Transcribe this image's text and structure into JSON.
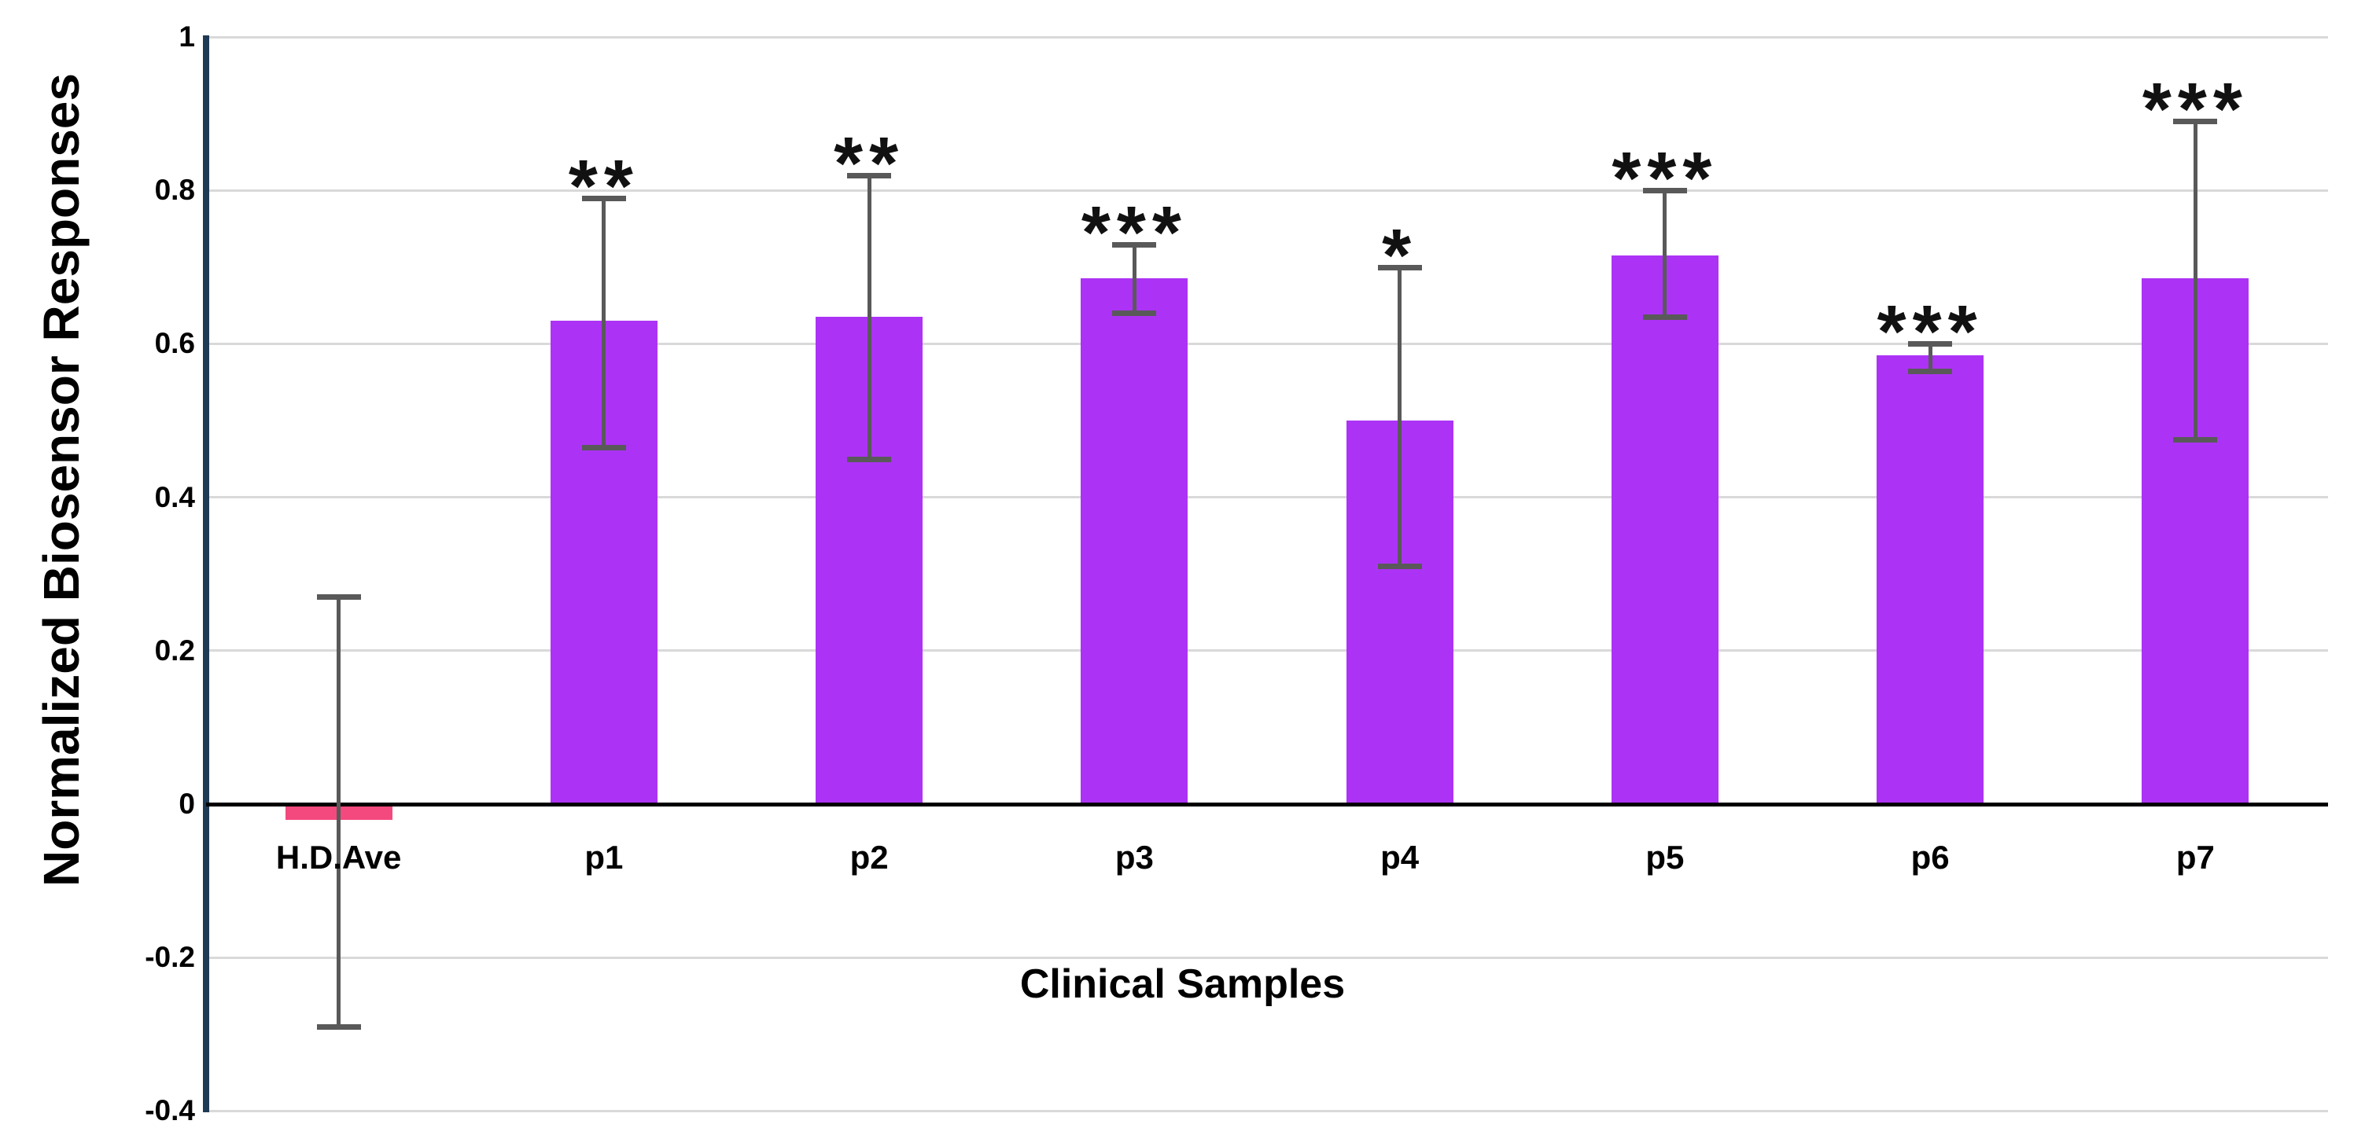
{
  "figure": {
    "background": "#ffffff"
  },
  "colors": {
    "axis_line": "#1f3a54",
    "zero_line": "#000000",
    "gridline": "#d9d9d9",
    "error_bar": "#595959",
    "text": "#000000",
    "purple_bar": "#ac33f5",
    "pink_bar": "#f4497e"
  },
  "chart_data": {
    "type": "bar",
    "title": "",
    "xlabel": "Clinical Samples",
    "ylabel": "Normalized Biosensor Responses",
    "ylim": [
      -0.4,
      1.0
    ],
    "grid": true,
    "legend": false,
    "categories": [
      "H.D.Ave",
      "p1",
      "p2",
      "p3",
      "p4",
      "p5",
      "p6",
      "p7"
    ],
    "values": [
      -0.02,
      0.63,
      0.635,
      0.685,
      0.5,
      0.715,
      0.585,
      0.685
    ],
    "error_low": [
      -0.29,
      0.465,
      0.45,
      0.64,
      0.31,
      0.635,
      0.565,
      0.475
    ],
    "error_high": [
      0.27,
      0.79,
      0.82,
      0.73,
      0.7,
      0.8,
      0.6,
      0.89
    ],
    "significance": [
      "",
      "**",
      "**",
      "***",
      "*",
      "***",
      "***",
      "***"
    ],
    "bar_colors": [
      "#f4497e",
      "#ac33f5",
      "#ac33f5",
      "#ac33f5",
      "#ac33f5",
      "#ac33f5",
      "#ac33f5",
      "#ac33f5"
    ],
    "yticks": [
      {
        "label": "1",
        "value": 1.0
      },
      {
        "label": "0.8",
        "value": 0.8
      },
      {
        "label": "0.6",
        "value": 0.6
      },
      {
        "label": "0.4",
        "value": 0.4
      },
      {
        "label": "0.2",
        "value": 0.2
      },
      {
        "label": "0",
        "value": 0.0
      },
      {
        "label": "-0.2",
        "value": -0.2
      },
      {
        "label": "-0.4",
        "value": -0.4
      }
    ]
  }
}
